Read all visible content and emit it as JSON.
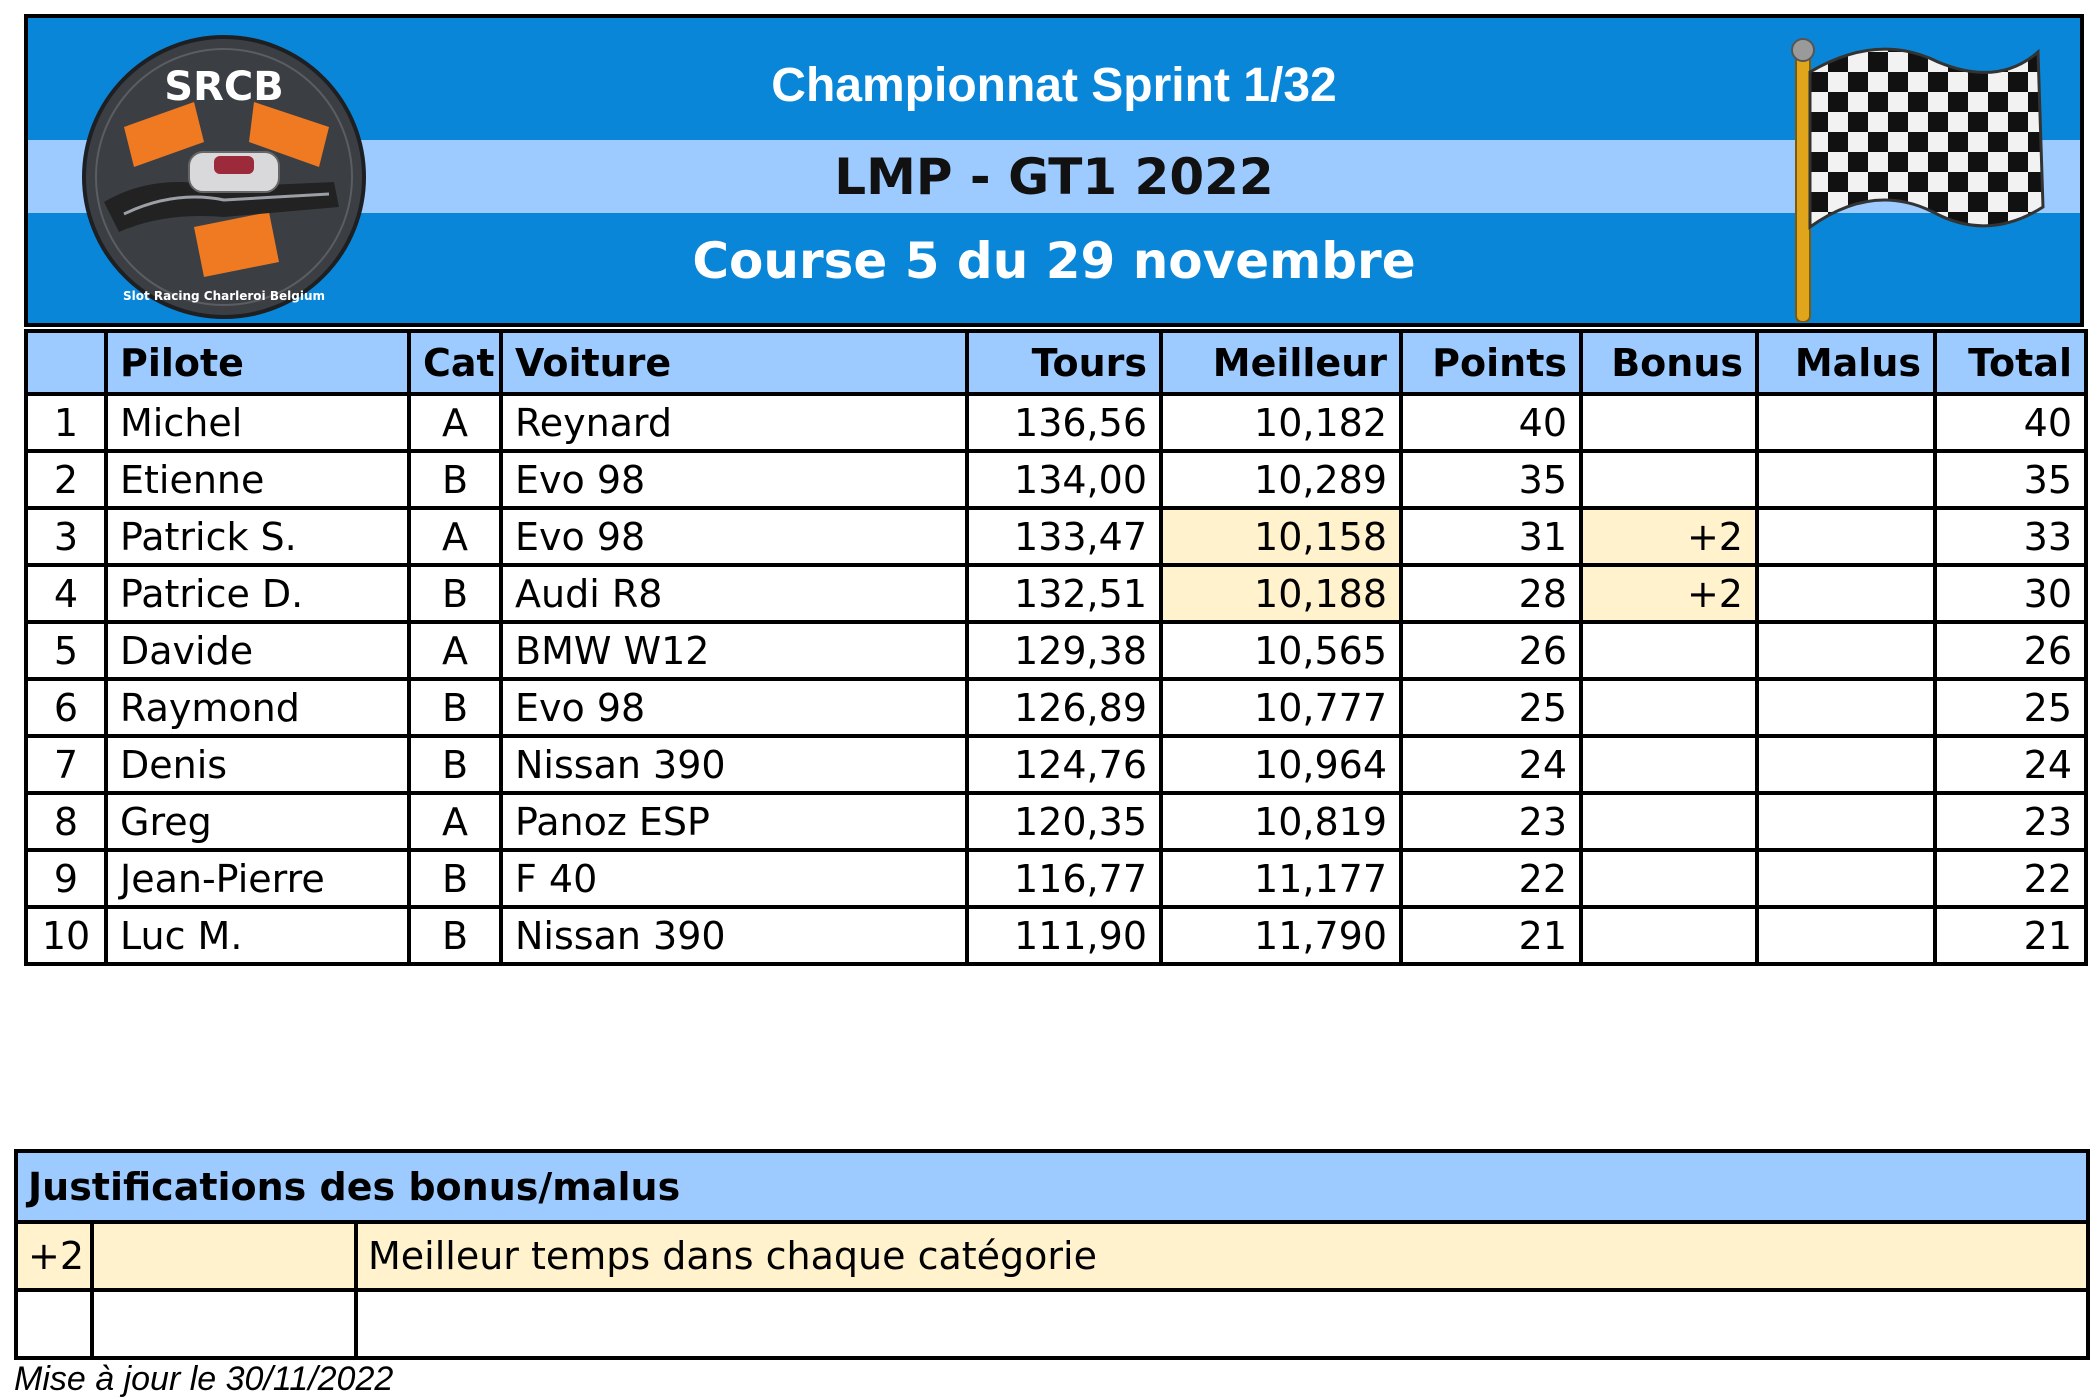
{
  "header": {
    "title": "Championnat Sprint 1/32",
    "subtitle": "LMP - GT1 2022",
    "race": "Course 5 du 29 novembre",
    "logo_text": "SRCB",
    "logo_caption": "Slot Racing Charleroi Belgium"
  },
  "colors": {
    "banner": "#0a86d8",
    "band": "#9dcbff",
    "header_row": "#9dcbff",
    "highlight": "#fff2cc"
  },
  "table": {
    "columns": [
      "",
      "Pilote",
      "Cat",
      "Voiture",
      "Tours",
      "Meilleur",
      "Points",
      "Bonus",
      "Malus",
      "Total"
    ],
    "rows": [
      {
        "pos": "1",
        "pilote": "Michel",
        "cat": "A",
        "voiture": "Reynard",
        "tours": "136,56",
        "meilleur": "10,182",
        "points": "40",
        "bonus": "",
        "malus": "",
        "total": "40",
        "hl": false
      },
      {
        "pos": "2",
        "pilote": "Etienne",
        "cat": "B",
        "voiture": "Evo 98",
        "tours": "134,00",
        "meilleur": "10,289",
        "points": "35",
        "bonus": "",
        "malus": "",
        "total": "35",
        "hl": false
      },
      {
        "pos": "3",
        "pilote": "Patrick S.",
        "cat": "A",
        "voiture": "Evo 98",
        "tours": "133,47",
        "meilleur": "10,158",
        "points": "31",
        "bonus": "+2",
        "malus": "",
        "total": "33",
        "hl": true
      },
      {
        "pos": "4",
        "pilote": "Patrice D.",
        "cat": "B",
        "voiture": "Audi R8",
        "tours": "132,51",
        "meilleur": "10,188",
        "points": "28",
        "bonus": "+2",
        "malus": "",
        "total": "30",
        "hl": true
      },
      {
        "pos": "5",
        "pilote": "Davide",
        "cat": "A",
        "voiture": "BMW W12",
        "tours": "129,38",
        "meilleur": "10,565",
        "points": "26",
        "bonus": "",
        "malus": "",
        "total": "26",
        "hl": false
      },
      {
        "pos": "6",
        "pilote": "Raymond",
        "cat": "B",
        "voiture": "Evo 98",
        "tours": "126,89",
        "meilleur": "10,777",
        "points": "25",
        "bonus": "",
        "malus": "",
        "total": "25",
        "hl": false
      },
      {
        "pos": "7",
        "pilote": "Denis",
        "cat": "B",
        "voiture": "Nissan 390",
        "tours": "124,76",
        "meilleur": "10,964",
        "points": "24",
        "bonus": "",
        "malus": "",
        "total": "24",
        "hl": false
      },
      {
        "pos": "8",
        "pilote": "Greg",
        "cat": "A",
        "voiture": "Panoz ESP",
        "tours": "120,35",
        "meilleur": "10,819",
        "points": "23",
        "bonus": "",
        "malus": "",
        "total": "23",
        "hl": false
      },
      {
        "pos": "9",
        "pilote": "Jean-Pierre",
        "cat": "B",
        "voiture": "F 40",
        "tours": "116,77",
        "meilleur": "11,177",
        "points": "22",
        "bonus": "",
        "malus": "",
        "total": "22",
        "hl": false
      },
      {
        "pos": "10",
        "pilote": "Luc M.",
        "cat": "B",
        "voiture": "Nissan 390",
        "tours": "111,90",
        "meilleur": "11,790",
        "points": "21",
        "bonus": "",
        "malus": "",
        "total": "21",
        "hl": false
      }
    ]
  },
  "justifications": {
    "title": "Justifications des bonus/malus",
    "rows": [
      {
        "value": "+2",
        "extra": "",
        "text": "Meilleur temps dans chaque catégorie"
      },
      {
        "value": "",
        "extra": "",
        "text": ""
      }
    ]
  },
  "footer": {
    "updated": "Mise à jour le 30/11/2022"
  }
}
